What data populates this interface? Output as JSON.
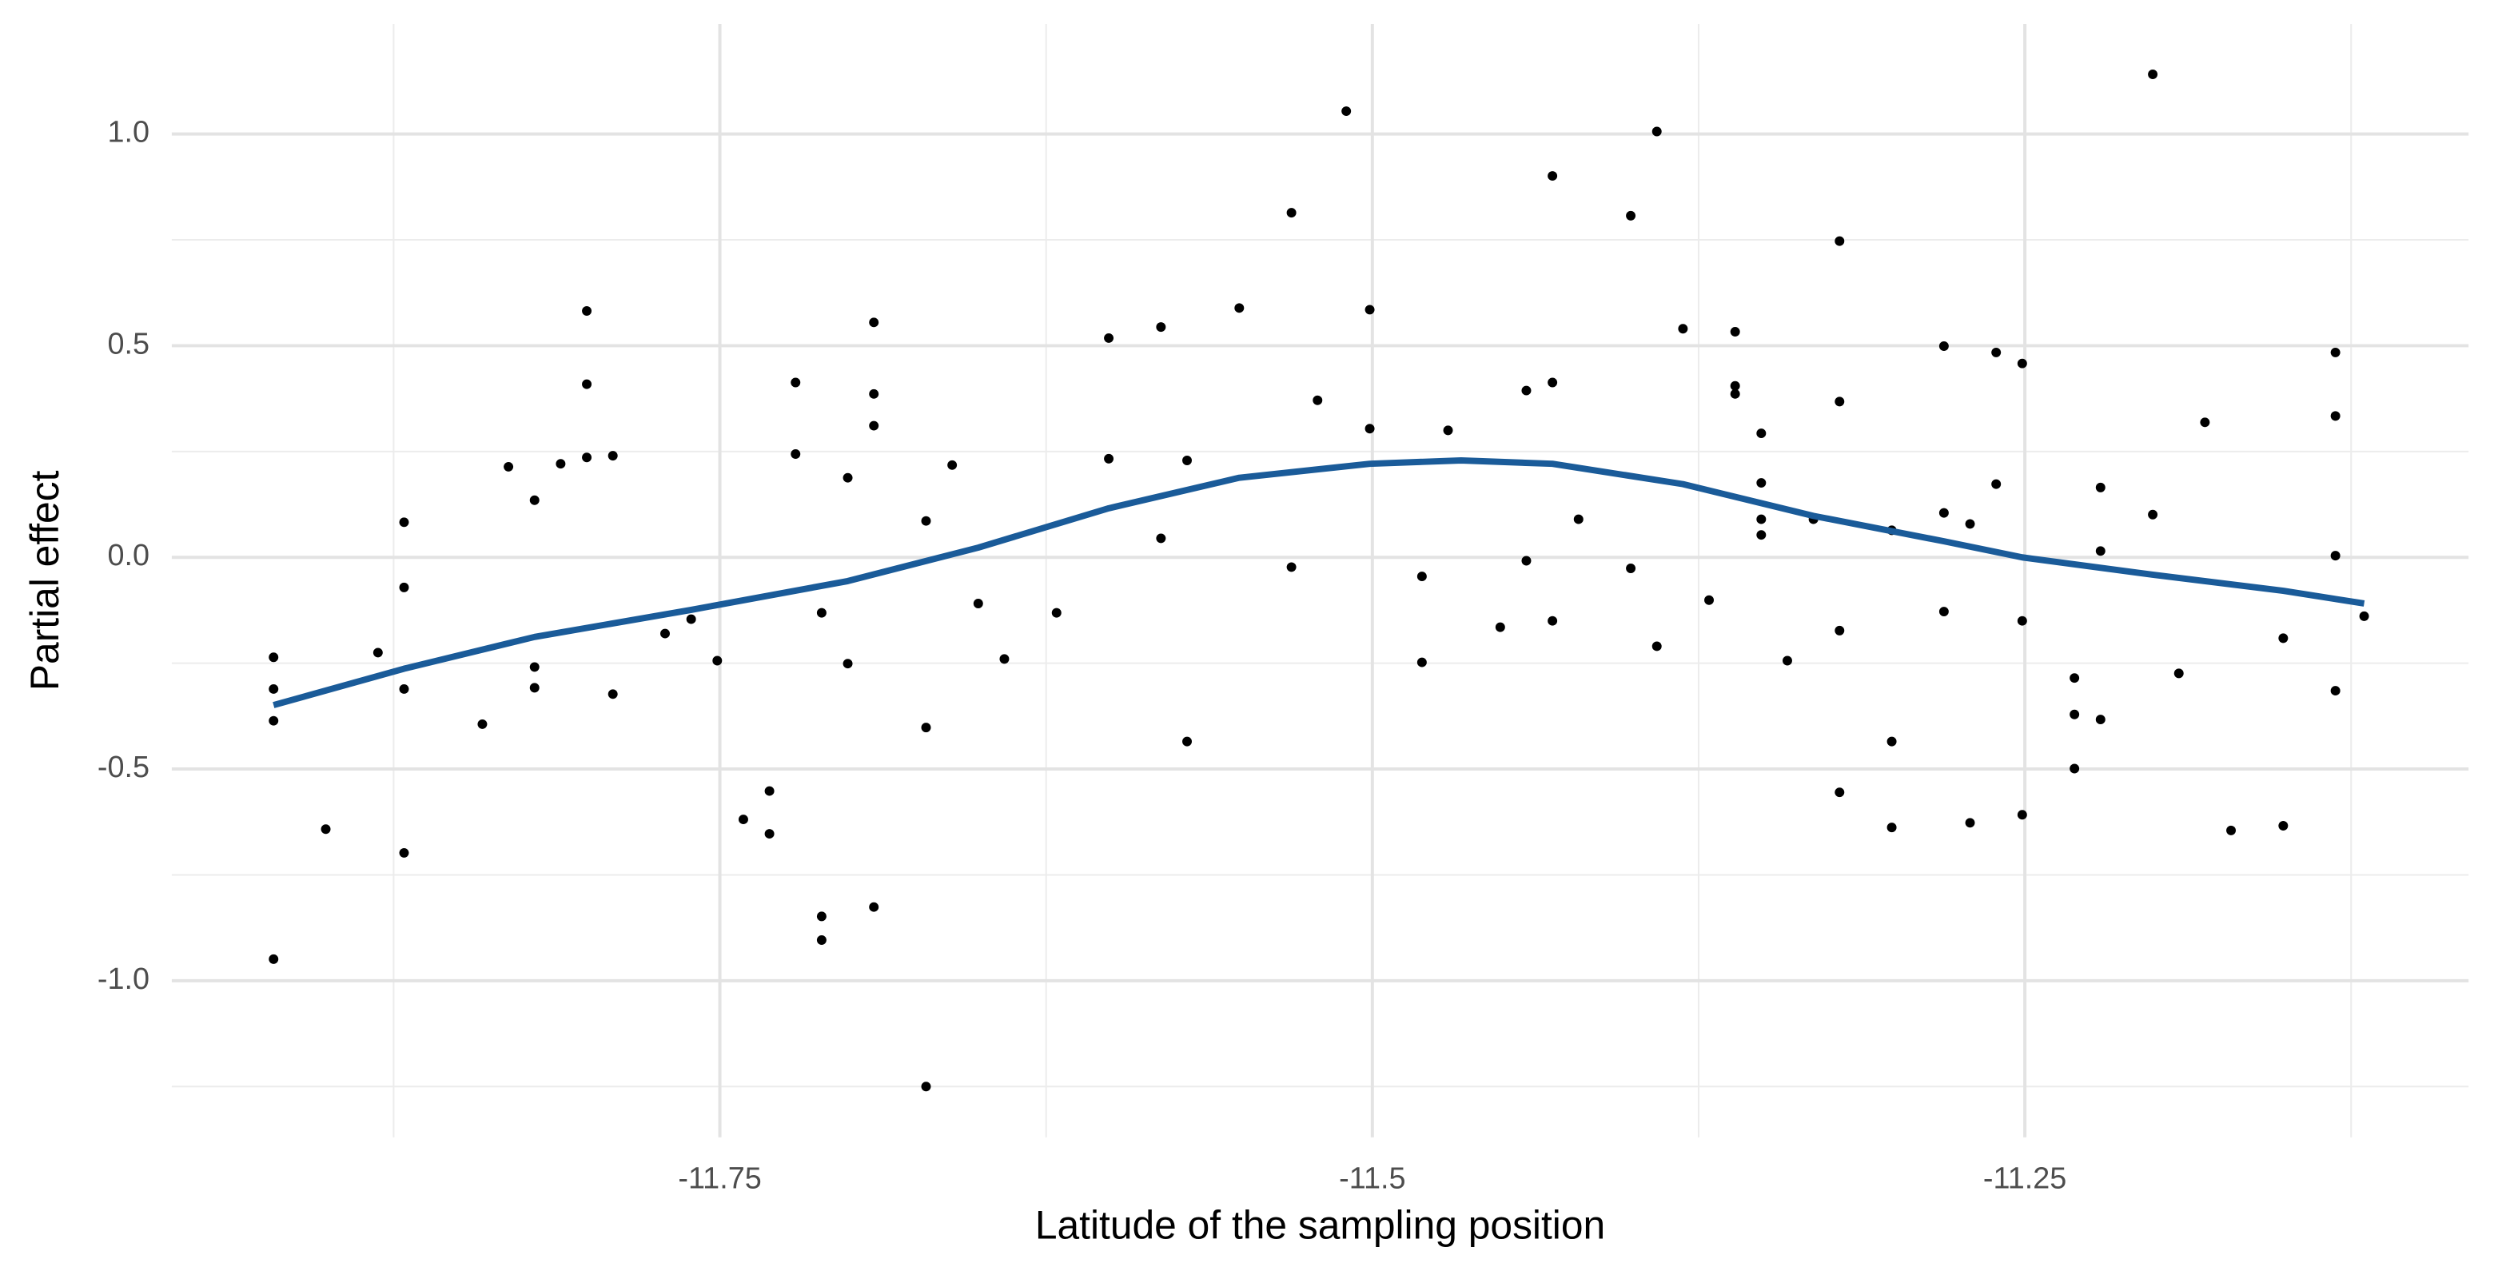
{
  "chart_data": {
    "type": "scatter",
    "x_label": "Latitude of the sampling position",
    "y_label": "Partial effect",
    "xlim": [
      -11.96,
      -11.08
    ],
    "ylim": [
      -1.37,
      1.26
    ],
    "xticks": [
      -11.75,
      -11.5,
      -11.25
    ],
    "yticks": [
      {
        "value": -1,
        "label": "-1.0"
      },
      {
        "value": -0.5,
        "label": "-0.5"
      },
      {
        "value": 0,
        "label": "0.0"
      },
      {
        "value": 0.5,
        "label": "0.5"
      },
      {
        "value": 1,
        "label": "1.0"
      }
    ],
    "x_minor_ticks": [
      -11.875,
      -11.625,
      -11.375,
      -11.125
    ],
    "y_minor_ticks": [
      -1.25,
      -0.75,
      -0.25,
      0.25,
      0.75
    ],
    "grid": true,
    "series": [
      {
        "type": "scatter",
        "color": "#000000",
        "x": [
          -11.921,
          -11.921,
          -11.921,
          -11.921,
          -11.901,
          -11.881,
          -11.871,
          -11.871,
          -11.871,
          -11.871,
          -11.841,
          -11.831,
          -11.821,
          -11.821,
          -11.821,
          -11.811,
          -11.801,
          -11.801,
          -11.801,
          -11.791,
          -11.791,
          -11.771,
          -11.761,
          -11.751,
          -11.741,
          -11.731,
          -11.731,
          -11.721,
          -11.721,
          -11.711,
          -11.711,
          -11.711,
          -11.701,
          -11.701,
          -11.691,
          -11.691,
          -11.691,
          -11.691,
          -11.671,
          -11.671,
          -11.671,
          -11.661,
          -11.651,
          -11.641,
          -11.621,
          -11.601,
          -11.601,
          -11.581,
          -11.581,
          -11.571,
          -11.571,
          -11.551,
          -11.531,
          -11.531,
          -11.521,
          -11.51,
          -11.501,
          -11.501,
          -11.481,
          -11.481,
          -11.471,
          -11.451,
          -11.441,
          -11.441,
          -11.431,
          -11.431,
          -11.431,
          -11.421,
          -11.401,
          -11.401,
          -11.391,
          -11.391,
          -11.381,
          -11.371,
          -11.361,
          -11.361,
          -11.361,
          -11.351,
          -11.351,
          -11.351,
          -11.351,
          -11.341,
          -11.331,
          -11.321,
          -11.321,
          -11.321,
          -11.321,
          -11.301,
          -11.301,
          -11.301,
          -11.281,
          -11.281,
          -11.281,
          -11.271,
          -11.271,
          -11.261,
          -11.261,
          -11.251,
          -11.251,
          -11.251,
          -11.231,
          -11.231,
          -11.231,
          -11.221,
          -11.221,
          -11.221,
          -11.201,
          -11.201,
          -11.191,
          -11.181,
          -11.171,
          -11.151,
          -11.151,
          -11.131,
          -11.131,
          -11.131,
          -11.131,
          -11.12
        ],
        "values": [
          -0.236,
          -0.311,
          -0.386,
          -0.949,
          -0.642,
          -0.225,
          0.083,
          -0.071,
          -0.311,
          -0.698,
          -0.394,
          0.214,
          0.135,
          -0.259,
          -0.308,
          0.221,
          0.582,
          0.409,
          0.236,
          0.24,
          -0.323,
          -0.18,
          -0.146,
          -0.244,
          -0.619,
          -0.552,
          -0.653,
          0.413,
          0.244,
          -0.131,
          -0.848,
          -0.904,
          0.188,
          -0.251,
          0.555,
          0.386,
          0.311,
          -0.826,
          0.086,
          -0.402,
          -1.25,
          0.218,
          -0.109,
          -0.24,
          -0.131,
          0.518,
          0.233,
          0.544,
          0.045,
          0.229,
          -0.435,
          0.589,
          0.814,
          -0.023,
          0.371,
          1.054,
          0.585,
          0.304,
          -0.045,
          -0.248,
          0.3,
          -0.165,
          0.394,
          -0.008,
          0.901,
          0.413,
          -0.15,
          0.09,
          0.807,
          -0.026,
          1.006,
          -0.21,
          0.54,
          -0.101,
          0.533,
          0.405,
          0.386,
          0.293,
          0.176,
          0.09,
          0.053,
          -0.244,
          0.09,
          0.747,
          0.368,
          -0.173,
          -0.555,
          0.064,
          -0.435,
          -0.638,
          0.499,
          0.105,
          -0.128,
          0.079,
          -0.627,
          0.484,
          0.173,
          0.458,
          -0.15,
          -0.608,
          -0.285,
          -0.371,
          -0.499,
          0.165,
          0.015,
          -0.383,
          1.141,
          0.101,
          -0.274,
          0.319,
          -0.645,
          -0.191,
          -0.634,
          0.484,
          0.334,
          0.004,
          -0.315,
          -0.139
        ]
      },
      {
        "type": "line",
        "color": "#1a5b99",
        "x": [
          -11.921,
          -11.871,
          -11.821,
          -11.761,
          -11.701,
          -11.651,
          -11.601,
          -11.551,
          -11.501,
          -11.466,
          -11.431,
          -11.381,
          -11.331,
          -11.281,
          -11.251,
          -11.201,
          -11.151,
          -11.12
        ],
        "values": [
          -0.349,
          -0.263,
          -0.188,
          -0.124,
          -0.056,
          0.023,
          0.116,
          0.188,
          0.221,
          0.229,
          0.221,
          0.173,
          0.098,
          0.038,
          0,
          -0.041,
          -0.079,
          -0.109
        ]
      }
    ]
  }
}
